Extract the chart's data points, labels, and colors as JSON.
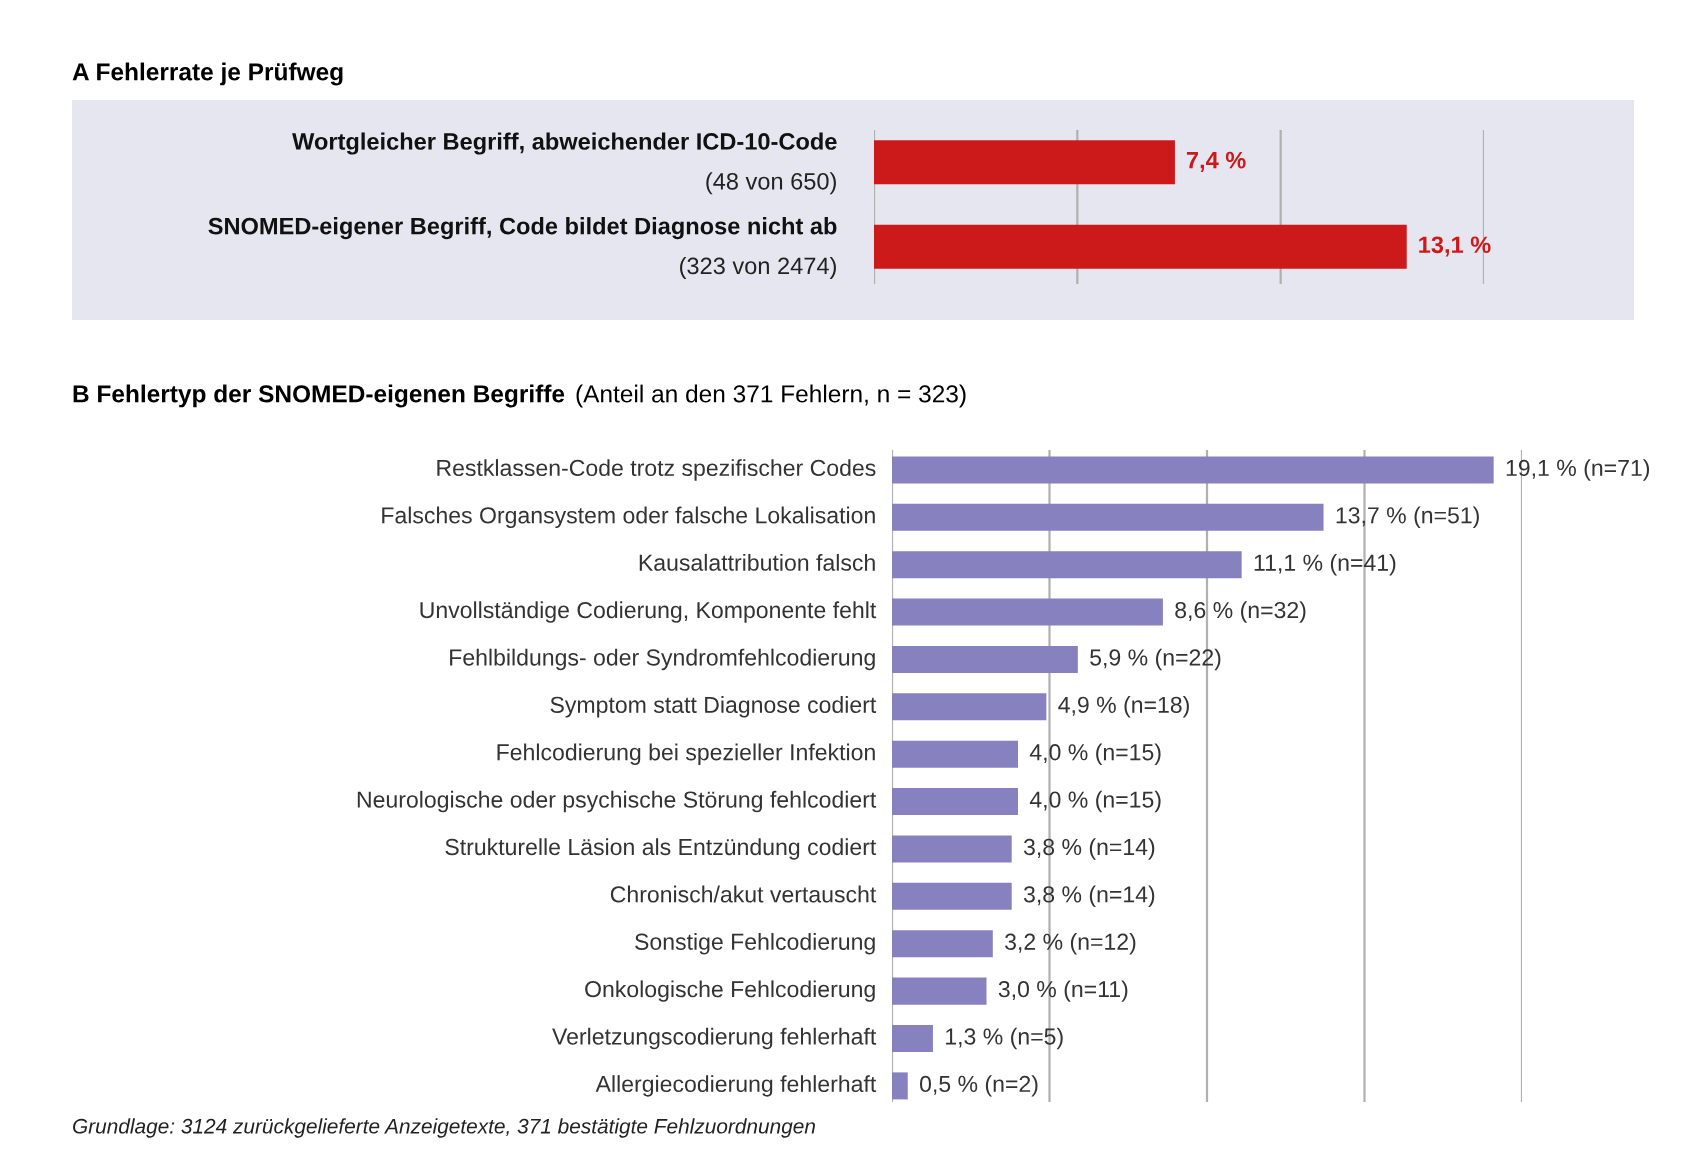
{
  "chart_data": [
    {
      "type": "bar",
      "orientation": "horizontal",
      "title": "A Fehlerrate je Prüfweg",
      "categories": [
        "Wortgleicher Begriff, abweichender ICD-10-Code\n(48 von 650)",
        "SNOMED-eigener Begriff, Code bildet Diagnose nicht ab\n(323 von 2474)"
      ],
      "values": [
        7.4,
        13.1
      ],
      "color": "#cc1a1a",
      "value_labels": [
        "7,4 %",
        "13,1 %"
      ],
      "xlim": [
        0,
        15
      ],
      "xticks": [
        {
          "value": 0,
          "label": null
        },
        {
          "value": 5,
          "label": null
        },
        {
          "value": 10,
          "label": null
        },
        {
          "value": 15,
          "label": null
        }
      ],
      "grid": "x",
      "tick_labels": "y"
    },
    {
      "type": "bar",
      "orientation": "horizontal",
      "title": "B Fehlertyp der SNOMED-eigenen Begriffe",
      "subtitle": "(Anteil an den 371 Fehlern, n = 323)",
      "categories": [
        "Restklassen-Code trotz spezifischer Codes",
        "Falsches Organsystem oder falsche Lokalisation",
        "Kausalattribution falsch",
        "Unvollständige Codierung, Komponente fehlt",
        "Fehlbildungs- oder Syndromfehlcodierung",
        "Symptom statt Diagnose codiert",
        "Fehlcodierung bei spezieller Infektion",
        "Neurologische oder psychische Störung fehlcodiert",
        "Strukturelle Läsion als Entzündung codiert",
        "Chronisch/akut vertauscht",
        "Sonstige Fehlcodierung",
        "Onkologische Fehlcodierung",
        "Verletzungscodierung fehlerhaft",
        "Allergiecodierung fehlerhaft"
      ],
      "values": [
        19.1,
        13.7,
        11.1,
        8.6,
        5.9,
        4.9,
        4.0,
        4.0,
        3.8,
        3.8,
        3.2,
        3.0,
        1.3,
        0.5
      ],
      "color": "#8781c0",
      "value_labels": [
        "19,1 % (n=71)",
        "13,7 % (n=51)",
        "11,1 % (n=41)",
        "8,6 % (n=32)",
        "5,9 % (n=22)",
        "4,9 % (n=18)",
        "4,0 % (n=15)",
        "4,0 % (n=15)",
        "3,8 % (n=14)",
        "3,8 % (n=14)",
        "3,2 % (n=12)",
        "3,0 % (n=11)",
        "1,3 % (n=5)",
        "0,5 % (n=2)"
      ],
      "xlim": [
        0,
        20
      ],
      "xticks": [
        {
          "value": 0,
          "label": null
        },
        {
          "value": 5,
          "label": null
        },
        {
          "value": 10,
          "label": null
        },
        {
          "value": 15,
          "label": null
        },
        {
          "value": 20,
          "label": null
        }
      ],
      "grid": "x",
      "tick_labels": "y",
      "annotations": [
        "Grundlage: 3124 zurückgelieferte Anzeigetexte, 371 bestätigte Fehlzuordnungen"
      ]
    }
  ]
}
